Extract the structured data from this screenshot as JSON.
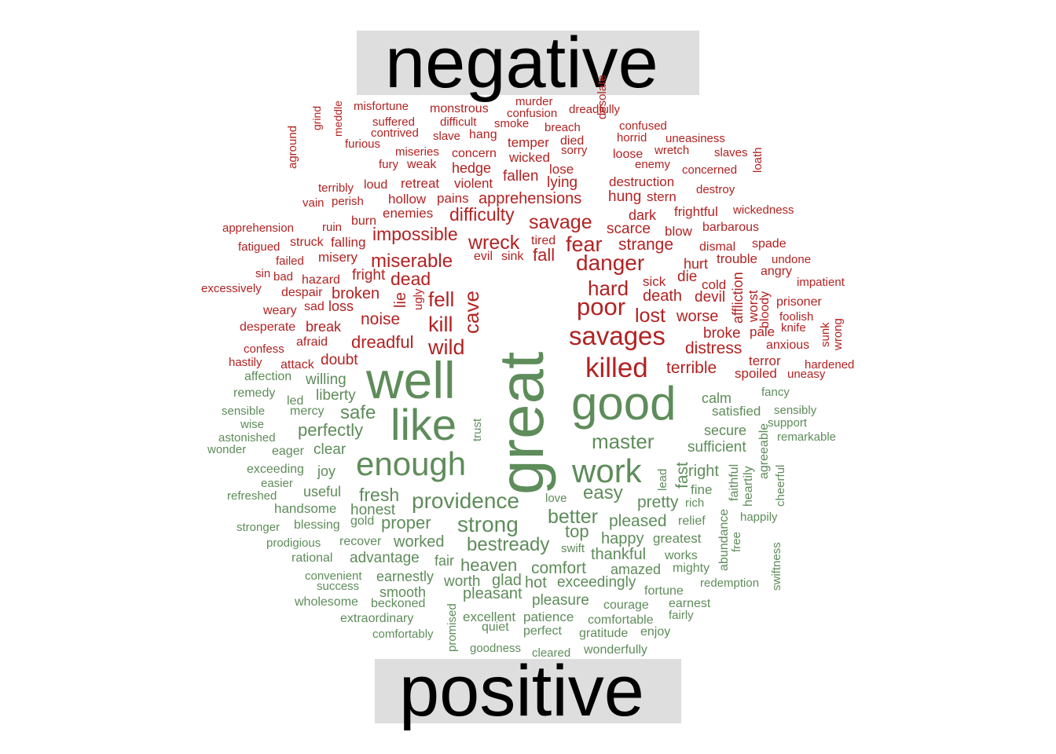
{
  "chart_data": {
    "type": "wordcloud",
    "groups": [
      {
        "name": "negative",
        "color": "#b22222",
        "words": [
          "misfortune",
          "monstrous",
          "murder",
          "dreadfully",
          "confusion",
          "suffered",
          "difficult",
          "smoke",
          "breach",
          "confused",
          "contrived",
          "slave",
          "hang",
          "desolate",
          "horrid",
          "uneasiness",
          "furious",
          "miseries",
          "concern",
          "temper",
          "died",
          "sorry",
          "loose",
          "wretch",
          "slaves",
          "grind",
          "meddle",
          "fury",
          "weak",
          "hedge",
          "wicked",
          "lose",
          "enemy",
          "concerned",
          "aground",
          "terribly",
          "loud",
          "retreat",
          "violent",
          "fallen",
          "lying",
          "destruction",
          "destroy",
          "loath",
          "vain",
          "perish",
          "hollow",
          "pains",
          "apprehensions",
          "hung",
          "stern",
          "frightful",
          "wickedness",
          "apprehension",
          "ruin",
          "burn",
          "enemies",
          "difficulty",
          "savage",
          "dark",
          "scarce",
          "blow",
          "barbarous",
          "fatigued",
          "struck",
          "falling",
          "impossible",
          "wreck",
          "tired",
          "fear",
          "strange",
          "dismal",
          "spade",
          "failed",
          "misery",
          "miserable",
          "evil",
          "sink",
          "fall",
          "danger",
          "hurt",
          "trouble",
          "undone",
          "sin",
          "bad",
          "hazard",
          "fright",
          "dead",
          "die",
          "cold",
          "angry",
          "excessively",
          "despair",
          "broken",
          "lie",
          "ugly",
          "fell",
          "cave",
          "hard",
          "sick",
          "death",
          "devil",
          "affliction",
          "worst",
          "impatient",
          "weary",
          "sad",
          "loss",
          "poor",
          "lost",
          "worse",
          "bloody",
          "prisoner",
          "desperate",
          "break",
          "noise",
          "kill",
          "savages",
          "broke",
          "pale",
          "foolish",
          "knife",
          "sunk",
          "wrong",
          "confess",
          "afraid",
          "dreadful",
          "wild",
          "distress",
          "anxious",
          "hastily",
          "attack",
          "doubt",
          "killed",
          "terrible",
          "terror",
          "hardened",
          "spoiled",
          "uneasy"
        ]
      },
      {
        "name": "positive",
        "color": "#5e8c5a",
        "words": [
          "great",
          "well",
          "good",
          "like",
          "enough",
          "work",
          "affection",
          "willing",
          "calm",
          "fancy",
          "remedy",
          "liberty",
          "led",
          "mercy",
          "safe",
          "satisfied",
          "sensibly",
          "sensible",
          "wise",
          "perfectly",
          "trust",
          "master",
          "secure",
          "support",
          "astonished",
          "remarkable",
          "wonder",
          "eager",
          "clear",
          "sufficient",
          "exceeding",
          "joy",
          "fast",
          "right",
          "agreeable",
          "easier",
          "useful",
          "fresh",
          "lead",
          "faithful",
          "heartily",
          "cheerful",
          "refreshed",
          "handsome",
          "honest",
          "providence",
          "easy",
          "fine",
          "pretty",
          "love",
          "rich",
          "stronger",
          "blessing",
          "gold",
          "proper",
          "strong",
          "better",
          "pleased",
          "relief",
          "happily",
          "prodigious",
          "recover",
          "worked",
          "top",
          "happy",
          "greatest",
          "abundance",
          "free",
          "rational",
          "advantage",
          "bestready",
          "swift",
          "thankful",
          "works",
          "convenient",
          "fair",
          "heaven",
          "comfort",
          "amazed",
          "mighty",
          "earnestly",
          "worth",
          "glad",
          "hot",
          "exceedingly",
          "redemption",
          "swiftness",
          "success",
          "smooth",
          "pleasant",
          "fortune",
          "wholesome",
          "beckoned",
          "promised",
          "pleasure",
          "courage",
          "earnest",
          "extraordinary",
          "excellent",
          "patience",
          "comfortable",
          "fairly",
          "comfortably",
          "quiet",
          "perfect",
          "gratitude",
          "enjoy",
          "goodness",
          "cleared",
          "wonderfully"
        ]
      }
    ]
  },
  "labels": {
    "negative": "negative",
    "positive": "positive"
  }
}
